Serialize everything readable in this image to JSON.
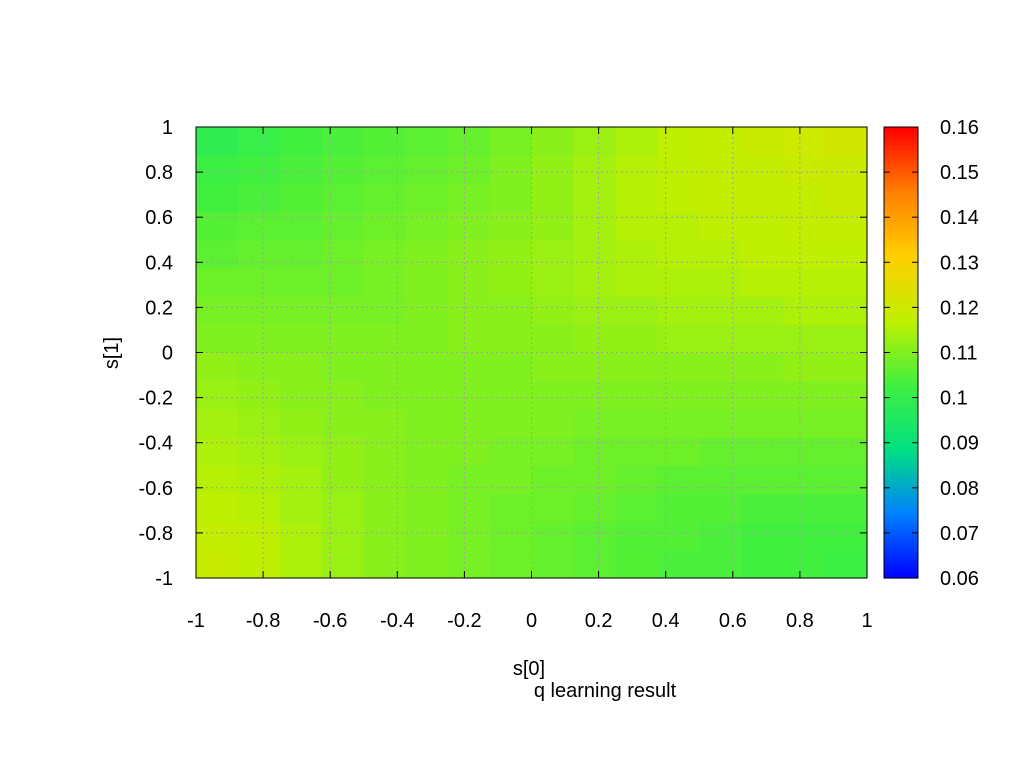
{
  "chart_data": {
    "type": "heatmap",
    "title": "q learning result",
    "xlabel": "s[0]",
    "ylabel": "s[1]",
    "xlim": [
      -1,
      1
    ],
    "ylim": [
      -1,
      1
    ],
    "x_ticks": [
      -1,
      -0.8,
      -0.6,
      -0.4,
      -0.2,
      0,
      0.2,
      0.4,
      0.6,
      0.8,
      1
    ],
    "x_tick_labels": [
      "-1",
      "-0.8",
      "-0.6",
      "-0.4",
      "-0.2",
      "0",
      "0.2",
      "0.4",
      "0.6",
      "0.8",
      "1"
    ],
    "y_ticks": [
      -1,
      -0.8,
      -0.6,
      -0.4,
      -0.2,
      0,
      0.2,
      0.4,
      0.6,
      0.8,
      1
    ],
    "y_tick_labels": [
      "-1",
      "-0.8",
      "-0.6",
      "-0.4",
      "-0.2",
      "0",
      "0.2",
      "0.4",
      "0.6",
      "0.8",
      "1"
    ],
    "grid": true,
    "colorbar": {
      "range": [
        0.06,
        0.16
      ],
      "ticks": [
        0.06,
        0.07,
        0.08,
        0.09,
        0.1,
        0.11,
        0.12,
        0.13,
        0.14,
        0.15,
        0.16
      ],
      "tick_labels": [
        "0.06",
        "0.07",
        "0.08",
        "0.09",
        "0.1",
        "0.11",
        "0.12",
        "0.13",
        "0.14",
        "0.15",
        "0.16"
      ],
      "palette": [
        "#0000ff",
        "#0080ff",
        "#00e080",
        "#40f040",
        "#c0f000",
        "#ffd000",
        "#ff8000",
        "#ff0000"
      ]
    },
    "x_cells": [
      -1,
      -0.875,
      -0.75,
      -0.625,
      -0.5,
      -0.375,
      -0.25,
      -0.125,
      0,
      0.125,
      0.25,
      0.375,
      0.5,
      0.625,
      0.75,
      0.875
    ],
    "y_cells": [
      -1,
      -0.875,
      -0.75,
      -0.625,
      -0.5,
      -0.375,
      -0.25,
      -0.125,
      0,
      0.125,
      0.25,
      0.375,
      0.5,
      0.625,
      0.75,
      0.875
    ],
    "z": [
      [
        0.119,
        0.117,
        0.115,
        0.113,
        0.111,
        0.11,
        0.109,
        0.108,
        0.107,
        0.106,
        0.105,
        0.104,
        0.104,
        0.103,
        0.103,
        0.102
      ],
      [
        0.118,
        0.117,
        0.115,
        0.113,
        0.111,
        0.11,
        0.109,
        0.108,
        0.107,
        0.106,
        0.105,
        0.105,
        0.104,
        0.103,
        0.103,
        0.103
      ],
      [
        0.117,
        0.116,
        0.114,
        0.113,
        0.111,
        0.11,
        0.109,
        0.108,
        0.108,
        0.107,
        0.106,
        0.105,
        0.105,
        0.104,
        0.104,
        0.104
      ],
      [
        0.116,
        0.115,
        0.114,
        0.112,
        0.111,
        0.11,
        0.109,
        0.109,
        0.108,
        0.108,
        0.107,
        0.106,
        0.106,
        0.106,
        0.106,
        0.106
      ],
      [
        0.115,
        0.114,
        0.113,
        0.112,
        0.111,
        0.11,
        0.11,
        0.109,
        0.109,
        0.108,
        0.108,
        0.108,
        0.107,
        0.107,
        0.107,
        0.107
      ],
      [
        0.114,
        0.113,
        0.112,
        0.111,
        0.111,
        0.11,
        0.11,
        0.11,
        0.11,
        0.109,
        0.109,
        0.109,
        0.109,
        0.109,
        0.109,
        0.109
      ],
      [
        0.113,
        0.112,
        0.111,
        0.111,
        0.11,
        0.11,
        0.11,
        0.11,
        0.11,
        0.11,
        0.11,
        0.11,
        0.11,
        0.11,
        0.11,
        0.11
      ],
      [
        0.112,
        0.111,
        0.111,
        0.11,
        0.11,
        0.11,
        0.11,
        0.11,
        0.111,
        0.111,
        0.111,
        0.111,
        0.111,
        0.111,
        0.112,
        0.112
      ],
      [
        0.11,
        0.11,
        0.11,
        0.11,
        0.11,
        0.11,
        0.111,
        0.111,
        0.111,
        0.112,
        0.112,
        0.113,
        0.113,
        0.113,
        0.113,
        0.113
      ],
      [
        0.109,
        0.109,
        0.109,
        0.109,
        0.109,
        0.11,
        0.111,
        0.111,
        0.112,
        0.113,
        0.113,
        0.114,
        0.114,
        0.114,
        0.115,
        0.115
      ],
      [
        0.108,
        0.108,
        0.108,
        0.108,
        0.109,
        0.11,
        0.111,
        0.112,
        0.113,
        0.114,
        0.115,
        0.115,
        0.115,
        0.116,
        0.116,
        0.116
      ],
      [
        0.106,
        0.107,
        0.107,
        0.108,
        0.109,
        0.11,
        0.111,
        0.112,
        0.113,
        0.114,
        0.115,
        0.116,
        0.116,
        0.117,
        0.117,
        0.117
      ],
      [
        0.105,
        0.106,
        0.106,
        0.107,
        0.108,
        0.109,
        0.11,
        0.111,
        0.112,
        0.114,
        0.116,
        0.116,
        0.117,
        0.117,
        0.118,
        0.118
      ],
      [
        0.103,
        0.104,
        0.105,
        0.106,
        0.107,
        0.108,
        0.109,
        0.11,
        0.112,
        0.114,
        0.116,
        0.117,
        0.118,
        0.118,
        0.118,
        0.119
      ],
      [
        0.102,
        0.103,
        0.104,
        0.105,
        0.106,
        0.107,
        0.108,
        0.11,
        0.112,
        0.114,
        0.116,
        0.117,
        0.118,
        0.118,
        0.119,
        0.119
      ],
      [
        0.099,
        0.101,
        0.103,
        0.104,
        0.105,
        0.106,
        0.107,
        0.109,
        0.111,
        0.113,
        0.115,
        0.117,
        0.118,
        0.119,
        0.12,
        0.121
      ]
    ]
  }
}
